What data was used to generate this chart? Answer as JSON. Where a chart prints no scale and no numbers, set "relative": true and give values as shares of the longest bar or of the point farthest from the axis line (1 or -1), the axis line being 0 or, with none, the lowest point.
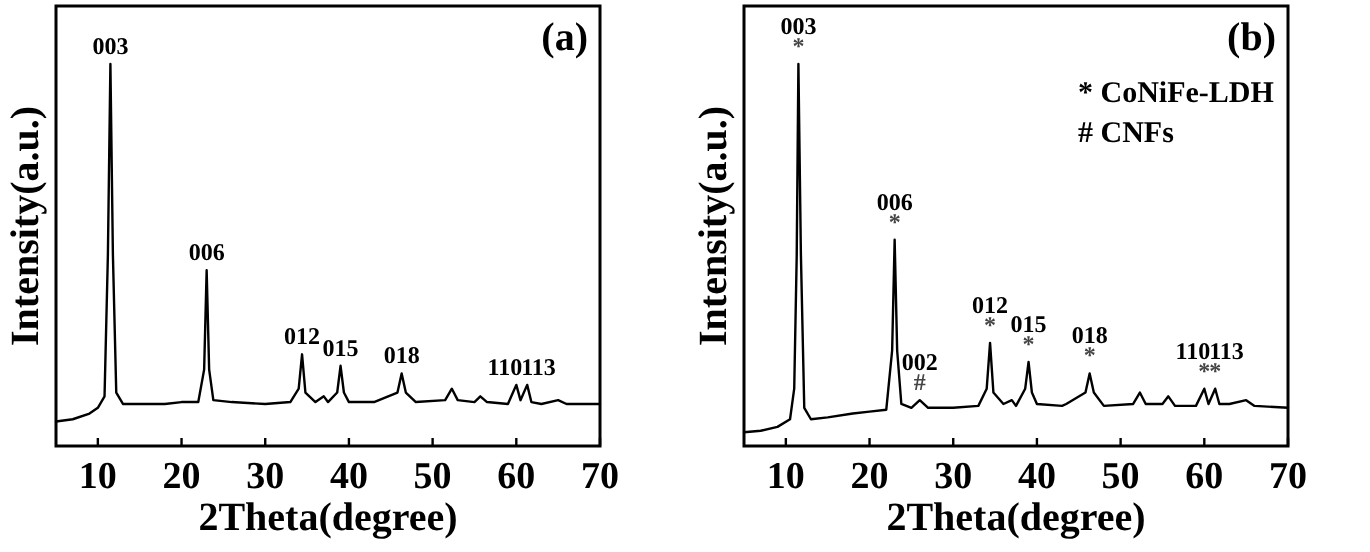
{
  "chart_data": [
    {
      "type": "line",
      "title": "(a)",
      "xlabel": "2Theta(degree)",
      "ylabel": "Intensity(a.u.)",
      "relative": true,
      "xlim": [
        5,
        70
      ],
      "xticks": [
        10,
        20,
        30,
        40,
        50,
        60,
        70
      ],
      "series": [
        {
          "color": "#000000",
          "x": [
            5,
            7,
            9,
            10,
            10.8,
            11.2,
            11.5,
            11.8,
            12.2,
            13,
            15,
            18,
            20,
            22,
            22.7,
            23.0,
            23.3,
            23.8,
            26,
            30,
            33,
            34,
            34.4,
            34.8,
            36,
            37,
            37.5,
            38.6,
            39,
            39.4,
            40,
            43,
            45.8,
            46.3,
            46.8,
            48,
            51.5,
            52.3,
            53,
            55,
            55.7,
            56.5,
            59,
            60,
            60.5,
            61.3,
            61.8,
            63,
            65,
            66,
            70
          ],
          "values": [
            0.064,
            0.07,
            0.085,
            0.1,
            0.13,
            0.5,
            1.0,
            0.5,
            0.14,
            0.11,
            0.11,
            0.11,
            0.115,
            0.115,
            0.2,
            0.46,
            0.2,
            0.12,
            0.115,
            0.11,
            0.115,
            0.15,
            0.24,
            0.14,
            0.115,
            0.13,
            0.115,
            0.14,
            0.21,
            0.14,
            0.115,
            0.115,
            0.14,
            0.19,
            0.14,
            0.115,
            0.12,
            0.15,
            0.12,
            0.115,
            0.13,
            0.115,
            0.11,
            0.16,
            0.12,
            0.16,
            0.115,
            0.11,
            0.12,
            0.11,
            0.11
          ]
        }
      ],
      "annotations": [
        {
          "text": "003",
          "x": 11.5,
          "y": 1.0
        },
        {
          "text": "006",
          "x": 23.0,
          "y": 0.46
        },
        {
          "text": "012",
          "x": 34.4,
          "y": 0.24
        },
        {
          "text": "015",
          "x": 39,
          "y": 0.21
        },
        {
          "text": "018",
          "x": 46.3,
          "y": 0.19
        },
        {
          "text": "110",
          "x": 60,
          "y": 0.16
        },
        {
          "text": "113",
          "x": 61.3,
          "y": 0.16
        }
      ]
    },
    {
      "type": "line",
      "title": "(b)",
      "xlabel": "2Theta(degree)",
      "ylabel": "Intensity(a.u.)",
      "relative": true,
      "xlim": [
        5,
        70
      ],
      "xticks": [
        10,
        20,
        30,
        40,
        50,
        60,
        70
      ],
      "series": [
        {
          "color": "#000000",
          "x": [
            5,
            7,
            9,
            10.5,
            11,
            11.3,
            11.5,
            11.8,
            12.2,
            13,
            15,
            18,
            20,
            22,
            22.7,
            23.0,
            23.3,
            23.8,
            25,
            26,
            27,
            30,
            33,
            34,
            34.4,
            34.8,
            36,
            37,
            37.5,
            38.6,
            39,
            39.4,
            40,
            43,
            43.5,
            45.8,
            46.3,
            46.8,
            48,
            51.5,
            52.3,
            53,
            55,
            55.7,
            56.5,
            59,
            60,
            60.5,
            61.3,
            61.8,
            63,
            65,
            66,
            70
          ],
          "values": [
            0.036,
            0.04,
            0.05,
            0.07,
            0.15,
            0.5,
            1.0,
            0.5,
            0.1,
            0.07,
            0.075,
            0.085,
            0.09,
            0.095,
            0.25,
            0.54,
            0.25,
            0.11,
            0.1,
            0.12,
            0.1,
            0.1,
            0.105,
            0.15,
            0.27,
            0.14,
            0.11,
            0.12,
            0.105,
            0.15,
            0.22,
            0.14,
            0.11,
            0.105,
            0.11,
            0.14,
            0.19,
            0.14,
            0.105,
            0.11,
            0.14,
            0.11,
            0.11,
            0.13,
            0.105,
            0.105,
            0.15,
            0.11,
            0.15,
            0.11,
            0.11,
            0.12,
            0.105,
            0.1
          ]
        }
      ],
      "annotations": [
        "* CoNiFe-LDH",
        "# CNFs",
        {
          "text": "*",
          "x": 11.5,
          "y": 1.0
        },
        {
          "text": "003",
          "x": 11.5,
          "y": 1.0
        },
        {
          "text": "*",
          "x": 23.0,
          "y": 0.54
        },
        {
          "text": "006",
          "x": 23.0,
          "y": 0.54
        },
        {
          "text": "#",
          "x": 26,
          "y": 0.12
        },
        {
          "text": "002",
          "x": 26,
          "y": 0.12
        },
        {
          "text": "*",
          "x": 34.4,
          "y": 0.27
        },
        {
          "text": "012",
          "x": 34.4,
          "y": 0.27
        },
        {
          "text": "*",
          "x": 39,
          "y": 0.22
        },
        {
          "text": "015",
          "x": 39,
          "y": 0.22
        },
        {
          "text": "*",
          "x": 46.3,
          "y": 0.19
        },
        {
          "text": "018",
          "x": 46.3,
          "y": 0.19
        },
        {
          "text": "*",
          "x": 60,
          "y": 0.15
        },
        {
          "text": "110",
          "x": 60,
          "y": 0.15
        },
        {
          "text": "*",
          "x": 61.3,
          "y": 0.15
        },
        {
          "text": "113",
          "x": 61.3,
          "y": 0.15
        }
      ]
    }
  ]
}
